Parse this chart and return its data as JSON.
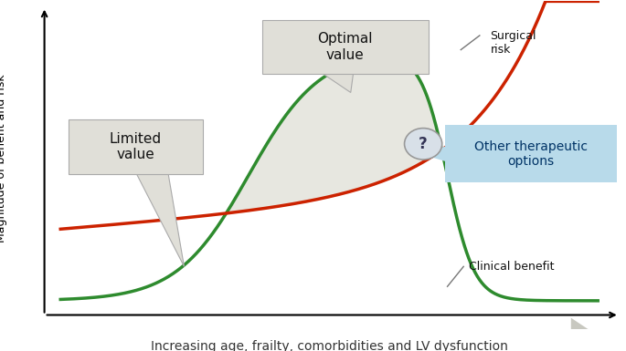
{
  "title": "",
  "xlabel": "Increasing age, frailty, comorbidities and LV dysfunction",
  "ylabel": "Magnitude of benefit and risk",
  "bg_color": "#ffffff",
  "green_color": "#2e8b2e",
  "red_color": "#cc2200",
  "fill_color": "#d8d8cc",
  "fill_alpha": 0.6,
  "blue_box_color": "#b8daea",
  "blue_box_text": "Other therapeutic\noptions",
  "optimal_label": "Optimal\nvalue",
  "limited_label": "Limited\nvalue",
  "surgical_risk_label": "Surgical\nrisk",
  "clinical_benefit_label": "Clinical benefit",
  "question_mark": "?",
  "callout_facecolor": "#e0dfd8",
  "callout_edgecolor": "#aaaaaa"
}
